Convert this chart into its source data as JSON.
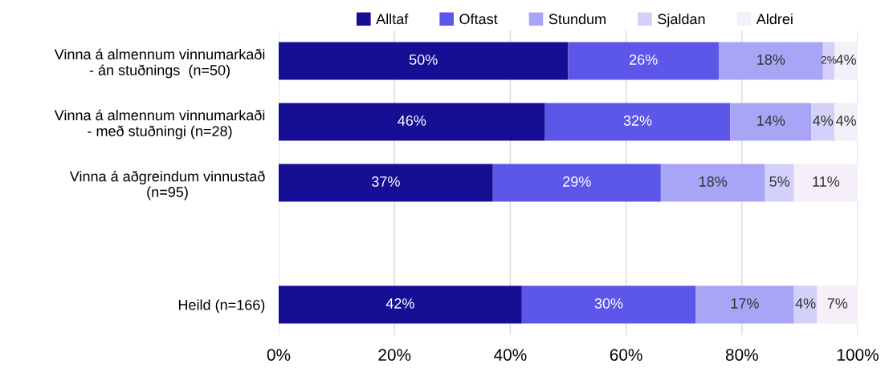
{
  "chart_data": {
    "type": "bar",
    "orientation": "horizontal",
    "stacked": true,
    "categories": [
      "Vinna á almennum vinnumarkaði\n- án stuðnings  (n=50)",
      "Vinna á almennum vinnumarkaði\n- með stuðningi (n=28)",
      "Vinna á aðgreindum vinnustað\n(n=95)",
      null,
      "Heild (n=166)"
    ],
    "series": [
      {
        "name": "Alltaf",
        "color": "#160f95",
        "values": [
          50,
          46,
          37,
          null,
          42
        ],
        "value_labels": [
          "50%",
          "46%",
          "37%",
          null,
          "42%"
        ]
      },
      {
        "name": "Oftast",
        "color": "#5c56e9",
        "values": [
          26,
          32,
          29,
          null,
          30
        ],
        "value_labels": [
          "26%",
          "32%",
          "29%",
          null,
          "30%"
        ]
      },
      {
        "name": "Stundum",
        "color": "#a9a5f6",
        "values": [
          18,
          14,
          18,
          null,
          17
        ],
        "value_labels": [
          "18%",
          "14%",
          "18%",
          null,
          "17%"
        ]
      },
      {
        "name": "Sjaldan",
        "color": "#d3d0fa",
        "values": [
          2,
          4,
          5,
          null,
          4
        ],
        "value_labels": [
          "2%",
          "4%",
          "5%",
          null,
          "4%"
        ]
      },
      {
        "name": "Aldrei",
        "color": "#f4eff8",
        "values": [
          4,
          4,
          11,
          null,
          7
        ],
        "value_labels": [
          "4%",
          "4%",
          "11%",
          null,
          "7%"
        ]
      }
    ],
    "xlim": [
      0,
      100
    ],
    "xticks": [
      {
        "value": 0,
        "label": "0%"
      },
      {
        "value": 20,
        "label": "20%"
      },
      {
        "value": 40,
        "label": "40%"
      },
      {
        "value": 60,
        "label": "60%"
      },
      {
        "value": 80,
        "label": "80%"
      },
      {
        "value": 100,
        "label": "100%"
      }
    ],
    "grid": "x",
    "legend": "top"
  }
}
